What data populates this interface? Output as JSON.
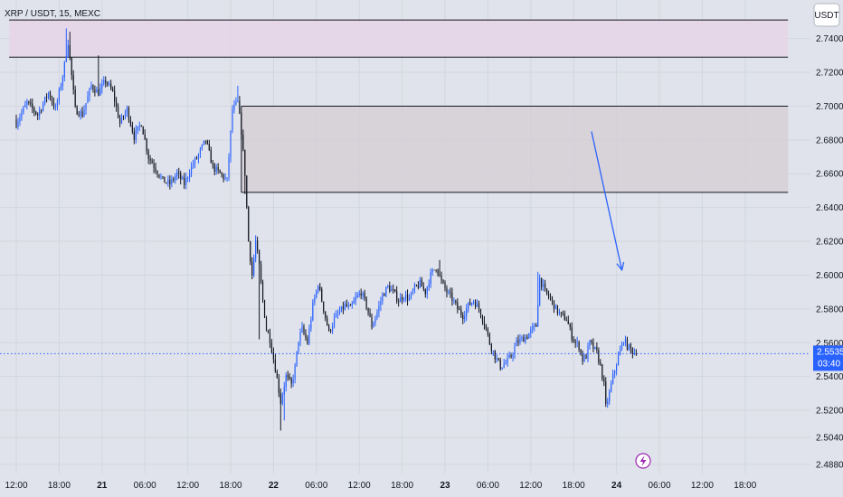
{
  "header": {
    "symbol_title": "XRP / USDT, 15, MEXC",
    "currency_button": "USDT"
  },
  "colors": {
    "background": "#e0e3eb",
    "grid": "#d3d6de",
    "up_candle": "#2962ff",
    "down_candle": "#131722",
    "supply_zone_fill": "#e6d5e8",
    "resistance_zone_fill": "#d6cfd6",
    "zone_border": "#131722",
    "arrow": "#2962ff",
    "last_price": "#2962ff",
    "lightning_icon": "#9c27b0"
  },
  "chart_data": {
    "type": "candlestick",
    "title": "XRP / USDT, 15, MEXC",
    "ylim": [
      2.4826,
      2.7628
    ],
    "y_ticks": [
      "2.7400",
      "2.7200",
      "2.7000",
      "2.6800",
      "2.6600",
      "2.6400",
      "2.6200",
      "2.6000",
      "2.5800",
      "2.5600",
      "2.5400",
      "2.5200",
      "2.5040",
      "2.4880"
    ],
    "x_ticks": [
      {
        "label": "12:00",
        "index": 0,
        "bold": false
      },
      {
        "label": "18:00",
        "index": 24,
        "bold": false
      },
      {
        "label": "21",
        "index": 48,
        "bold": true
      },
      {
        "label": "06:00",
        "index": 72,
        "bold": false
      },
      {
        "label": "12:00",
        "index": 96,
        "bold": false
      },
      {
        "label": "18:00",
        "index": 120,
        "bold": false
      },
      {
        "label": "22",
        "index": 144,
        "bold": true
      },
      {
        "label": "06:00",
        "index": 168,
        "bold": false
      },
      {
        "label": "12:00",
        "index": 192,
        "bold": false
      },
      {
        "label": "18:00",
        "index": 216,
        "bold": false
      },
      {
        "label": "23",
        "index": 240,
        "bold": true
      },
      {
        "label": "06:00",
        "index": 264,
        "bold": false
      },
      {
        "label": "12:00",
        "index": 288,
        "bold": false
      },
      {
        "label": "18:00",
        "index": 312,
        "bold": false
      },
      {
        "label": "24",
        "index": 336,
        "bold": true
      },
      {
        "label": "06:00",
        "index": 360,
        "bold": false
      },
      {
        "label": "12:00",
        "index": 384,
        "bold": false
      },
      {
        "label": "18:00",
        "index": 408,
        "bold": false
      }
    ],
    "last_price": 2.5535,
    "last_price_label": "2.5535",
    "countdown": "03:40",
    "zones": [
      {
        "name": "upper-supply-zone",
        "from_index": -4,
        "to_index": 432,
        "y_low": 2.729,
        "y_high": 2.751
      },
      {
        "name": "resistance-zone",
        "from_index": 126,
        "to_index": 432,
        "y_low": 2.649,
        "y_high": 2.7
      }
    ],
    "arrow": {
      "from_index": 322,
      "from_price": 2.685,
      "to_index": 339,
      "to_price": 2.603
    },
    "close_path": [
      [
        0,
        2.69
      ],
      [
        6,
        2.702
      ],
      [
        12,
        2.695
      ],
      [
        18,
        2.708
      ],
      [
        22,
        2.698
      ],
      [
        26,
        2.718
      ],
      [
        29,
        2.738
      ],
      [
        33,
        2.698
      ],
      [
        37,
        2.695
      ],
      [
        42,
        2.712
      ],
      [
        46,
        2.708
      ],
      [
        50,
        2.715
      ],
      [
        54,
        2.708
      ],
      [
        58,
        2.69
      ],
      [
        62,
        2.698
      ],
      [
        66,
        2.682
      ],
      [
        70,
        2.69
      ],
      [
        74,
        2.67
      ],
      [
        78,
        2.663
      ],
      [
        82,
        2.656
      ],
      [
        86,
        2.654
      ],
      [
        90,
        2.66
      ],
      [
        94,
        2.654
      ],
      [
        98,
        2.664
      ],
      [
        102,
        2.671
      ],
      [
        106,
        2.68
      ],
      [
        110,
        2.664
      ],
      [
        114,
        2.66
      ],
      [
        118,
        2.656
      ],
      [
        121,
        2.698
      ],
      [
        124,
        2.702
      ],
      [
        126,
        2.685
      ],
      [
        128,
        2.66
      ],
      [
        130,
        2.62
      ],
      [
        132,
        2.6
      ],
      [
        134,
        2.62
      ],
      [
        136,
        2.605
      ],
      [
        138,
        2.585
      ],
      [
        140,
        2.568
      ],
      [
        142,
        2.562
      ],
      [
        145,
        2.545
      ],
      [
        148,
        2.525
      ],
      [
        151,
        2.54
      ],
      [
        154,
        2.535
      ],
      [
        156,
        2.545
      ],
      [
        158,
        2.562
      ],
      [
        160,
        2.568
      ],
      [
        163,
        2.56
      ],
      [
        166,
        2.582
      ],
      [
        169,
        2.595
      ],
      [
        172,
        2.58
      ],
      [
        175,
        2.566
      ],
      [
        178,
        2.574
      ],
      [
        181,
        2.578
      ],
      [
        184,
        2.582
      ],
      [
        187,
        2.58
      ],
      [
        190,
        2.586
      ],
      [
        193,
        2.59
      ],
      [
        196,
        2.582
      ],
      [
        199,
        2.57
      ],
      [
        202,
        2.578
      ],
      [
        205,
        2.588
      ],
      [
        208,
        2.593
      ],
      [
        211,
        2.59
      ],
      [
        214,
        2.585
      ],
      [
        217,
        2.588
      ],
      [
        220,
        2.586
      ],
      [
        223,
        2.592
      ],
      [
        226,
        2.595
      ],
      [
        229,
        2.59
      ],
      [
        232,
        2.6
      ],
      [
        235,
        2.605
      ],
      [
        238,
        2.596
      ],
      [
        241,
        2.59
      ],
      [
        244,
        2.586
      ],
      [
        247,
        2.58
      ],
      [
        250,
        2.576
      ],
      [
        253,
        2.582
      ],
      [
        256,
        2.585
      ],
      [
        259,
        2.58
      ],
      [
        262,
        2.572
      ],
      [
        265,
        2.56
      ],
      [
        268,
        2.552
      ],
      [
        271,
        2.546
      ],
      [
        274,
        2.548
      ],
      [
        277,
        2.552
      ],
      [
        280,
        2.56
      ],
      [
        283,
        2.562
      ],
      [
        286,
        2.564
      ],
      [
        289,
        2.568
      ],
      [
        291,
        2.57
      ],
      [
        293,
        2.598
      ],
      [
        296,
        2.59
      ],
      [
        299,
        2.586
      ],
      [
        302,
        2.58
      ],
      [
        305,
        2.576
      ],
      [
        308,
        2.574
      ],
      [
        311,
        2.564
      ],
      [
        313,
        2.56
      ],
      [
        315,
        2.558
      ],
      [
        317,
        2.55
      ],
      [
        319,
        2.552
      ],
      [
        321,
        2.56
      ],
      [
        323,
        2.557
      ],
      [
        325,
        2.554
      ],
      [
        327,
        2.546
      ],
      [
        329,
        2.535
      ],
      [
        330,
        2.522
      ],
      [
        332,
        2.53
      ],
      [
        334,
        2.54
      ],
      [
        336,
        2.548
      ],
      [
        338,
        2.555
      ],
      [
        340,
        2.562
      ],
      [
        342,
        2.558
      ],
      [
        344,
        2.556
      ],
      [
        346,
        2.554
      ],
      [
        347,
        2.5535
      ]
    ]
  }
}
